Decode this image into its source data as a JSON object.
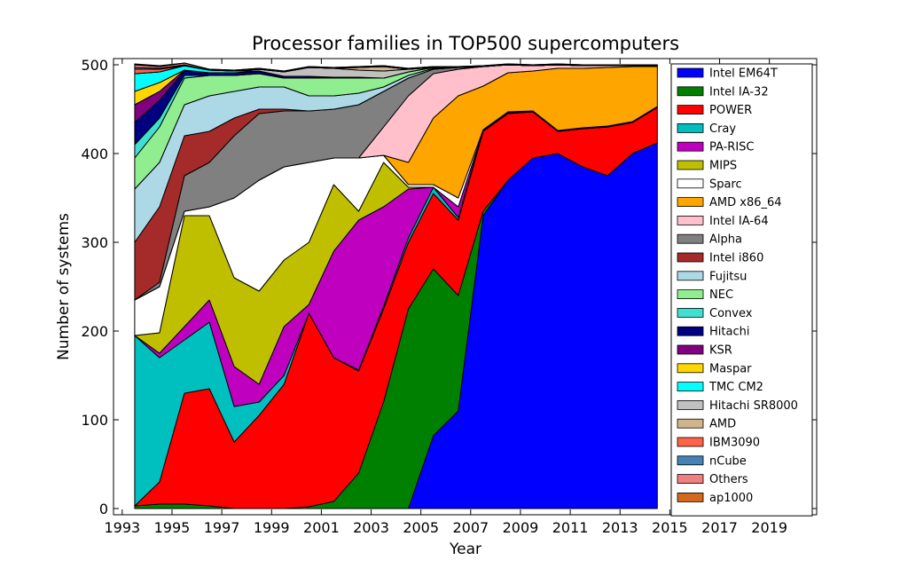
{
  "chart_data": {
    "type": "stacked_area",
    "title": "Processor families in TOP500 supercomputers",
    "x_label": "Year",
    "y_label": "Number of systems",
    "x": [
      1993.5,
      1994.5,
      1995.5,
      1996.5,
      1997.5,
      1998.5,
      1999.5,
      2000.5,
      2001.5,
      2002.5,
      2003.5,
      2004.5,
      2005.5,
      2006.5,
      2007.5,
      2008.5,
      2009.5,
      2010.5,
      2011.5,
      2012.5,
      2013.5,
      2014.5
    ],
    "xlim": [
      1992.65,
      2020.9
    ],
    "xticks": [
      1993,
      1995,
      1997,
      1999,
      2001,
      2003,
      2005,
      2007,
      2009,
      2011,
      2013,
      2015,
      2017,
      2019
    ],
    "ylim": [
      -7,
      507
    ],
    "yticks": [
      0,
      100,
      200,
      300,
      400,
      500
    ],
    "legend": "right",
    "series": [
      {
        "name": "Intel EM64T",
        "color": "#0000ff",
        "values": [
          0,
          0,
          0,
          0,
          0,
          0,
          0,
          0,
          0,
          0,
          0,
          0,
          82,
          110,
          330,
          370,
          395,
          400,
          385,
          375,
          400,
          412
        ]
      },
      {
        "name": "Intel IA-32",
        "color": "#008000",
        "values": [
          3,
          5,
          5,
          3,
          0,
          0,
          0,
          2,
          8,
          40,
          120,
          225,
          188,
          130,
          5,
          0,
          0,
          0,
          0,
          0,
          0,
          0
        ]
      },
      {
        "name": "POWER",
        "color": "#ff0000",
        "values": [
          0,
          25,
          125,
          132,
          75,
          105,
          140,
          218,
          162,
          115,
          105,
          75,
          85,
          85,
          90,
          75,
          52,
          25,
          43,
          55,
          35,
          40
        ]
      },
      {
        "name": "Cray",
        "color": "#00bfbf",
        "values": [
          192,
          140,
          60,
          75,
          40,
          15,
          10,
          0,
          0,
          1,
          3,
          5,
          7,
          3,
          1,
          1,
          0,
          0,
          0,
          0,
          0,
          0
        ]
      },
      {
        "name": "PA-RISC",
        "color": "#bf00bf",
        "values": [
          0,
          5,
          15,
          25,
          45,
          20,
          55,
          10,
          120,
          169,
          112,
          55,
          0,
          12,
          0,
          0,
          0,
          0,
          0,
          0,
          0,
          0
        ]
      },
      {
        "name": "MIPS",
        "color": "#bfbf00",
        "values": [
          0,
          23,
          125,
          95,
          100,
          105,
          75,
          70,
          75,
          10,
          50,
          2,
          0,
          0,
          0,
          0,
          0,
          0,
          0,
          0,
          0,
          0
        ]
      },
      {
        "name": "Sparc",
        "color": "#ffffff",
        "values": [
          40,
          52,
          5,
          10,
          90,
          125,
          105,
          90,
          30,
          60,
          8,
          3,
          3,
          10,
          1,
          1,
          1,
          1,
          1,
          1,
          1,
          1
        ]
      },
      {
        "name": "AMD x86_64",
        "color": "#ffa500",
        "values": [
          0,
          0,
          0,
          0,
          0,
          0,
          0,
          0,
          0,
          0,
          0,
          25,
          75,
          115,
          49,
          44,
          45,
          70,
          67,
          66,
          62,
          45
        ]
      },
      {
        "name": "Intel IA-64",
        "color": "#ffc0cb",
        "values": [
          0,
          0,
          0,
          0,
          0,
          0,
          0,
          0,
          0,
          0,
          32,
          75,
          50,
          30,
          22,
          9,
          6,
          4,
          3,
          2,
          1,
          1
        ]
      },
      {
        "name": "Alpha",
        "color": "#808080",
        "values": [
          0,
          5,
          40,
          50,
          70,
          75,
          63,
          58,
          55,
          60,
          40,
          20,
          5,
          2,
          0,
          0,
          0,
          0,
          0,
          0,
          0,
          0
        ]
      },
      {
        "name": "Intel i860",
        "color": "#a52a2a",
        "values": [
          65,
          85,
          45,
          35,
          20,
          5,
          2,
          0,
          0,
          0,
          0,
          0,
          0,
          0,
          0,
          0,
          0,
          0,
          0,
          0,
          0,
          0
        ]
      },
      {
        "name": "Fujitsu",
        "color": "#add8e6",
        "values": [
          60,
          50,
          35,
          40,
          30,
          25,
          25,
          17,
          15,
          13,
          5,
          3,
          1,
          0,
          0,
          0,
          0,
          0,
          0,
          0,
          0,
          0
        ]
      },
      {
        "name": "NEC",
        "color": "#90ee90",
        "values": [
          35,
          40,
          30,
          23,
          18,
          15,
          10,
          20,
          20,
          17,
          10,
          4,
          1,
          0,
          0,
          0,
          0,
          0,
          0,
          0,
          0,
          0
        ]
      },
      {
        "name": "Convex",
        "color": "#40e0d0",
        "values": [
          15,
          10,
          3,
          0,
          0,
          0,
          0,
          0,
          0,
          0,
          0,
          0,
          0,
          0,
          0,
          0,
          0,
          0,
          0,
          0,
          0,
          0
        ]
      },
      {
        "name": "Hitachi",
        "color": "#000080",
        "values": [
          25,
          20,
          5,
          3,
          3,
          3,
          2,
          2,
          1,
          1,
          0,
          0,
          0,
          0,
          0,
          0,
          0,
          0,
          0,
          0,
          0,
          0
        ]
      },
      {
        "name": "KSR",
        "color": "#800080",
        "values": [
          20,
          10,
          1,
          0,
          0,
          0,
          0,
          0,
          0,
          0,
          0,
          0,
          0,
          0,
          0,
          0,
          0,
          0,
          0,
          0,
          0,
          0
        ]
      },
      {
        "name": "Maspar",
        "color": "#ffd700",
        "values": [
          15,
          10,
          0,
          0,
          0,
          0,
          0,
          0,
          0,
          0,
          0,
          0,
          0,
          0,
          0,
          0,
          0,
          0,
          0,
          0,
          0,
          0
        ]
      },
      {
        "name": "TMC CM2",
        "color": "#00ffff",
        "values": [
          20,
          12,
          5,
          3,
          2,
          0,
          0,
          0,
          0,
          0,
          0,
          0,
          0,
          0,
          0,
          0,
          0,
          0,
          0,
          0,
          0,
          0
        ]
      },
      {
        "name": "Hitachi SR8000",
        "color": "#c0c0c0",
        "values": [
          0,
          0,
          0,
          0,
          0,
          2,
          5,
          10,
          10,
          8,
          8,
          3,
          0,
          0,
          0,
          0,
          0,
          0,
          0,
          0,
          0,
          0
        ]
      },
      {
        "name": "AMD",
        "color": "#d2b48c",
        "values": [
          0,
          0,
          0,
          0,
          0,
          0,
          0,
          0,
          0,
          3,
          5,
          0,
          0,
          0,
          0,
          0,
          0,
          0,
          0,
          0,
          0,
          0
        ]
      },
      {
        "name": "IBM3090",
        "color": "#ff6347",
        "values": [
          5,
          3,
          0,
          0,
          0,
          0,
          0,
          0,
          0,
          0,
          0,
          0,
          0,
          0,
          0,
          0,
          0,
          0,
          0,
          0,
          0,
          0
        ]
      },
      {
        "name": "nCube",
        "color": "#4682b4",
        "values": [
          2,
          1,
          1,
          0,
          0,
          0,
          0,
          0,
          0,
          0,
          0,
          0,
          0,
          0,
          0,
          0,
          0,
          0,
          0,
          0,
          0,
          0
        ]
      },
      {
        "name": "Others",
        "color": "#f08080",
        "values": [
          3,
          2,
          2,
          1,
          1,
          1,
          1,
          1,
          1,
          1,
          1,
          1,
          1,
          1,
          1,
          1,
          1,
          1,
          1,
          1,
          1,
          1
        ]
      },
      {
        "name": "ap1000",
        "color": "#d2691e",
        "values": [
          1,
          1,
          0,
          0,
          0,
          0,
          0,
          0,
          0,
          0,
          0,
          0,
          0,
          0,
          0,
          0,
          0,
          0,
          0,
          0,
          0,
          0
        ]
      }
    ]
  }
}
